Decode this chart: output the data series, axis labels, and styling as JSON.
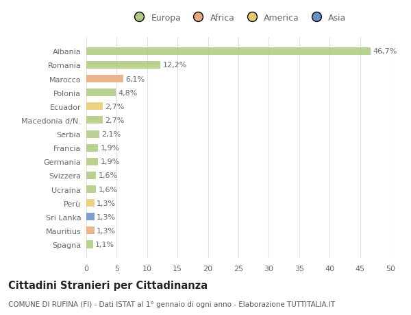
{
  "categories": [
    "Albania",
    "Romania",
    "Marocco",
    "Polonia",
    "Ecuador",
    "Macedonia d/N.",
    "Serbia",
    "Francia",
    "Germania",
    "Svizzera",
    "Ucraina",
    "Perù",
    "Sri Lanka",
    "Mauritius",
    "Spagna"
  ],
  "values": [
    46.7,
    12.2,
    6.1,
    4.8,
    2.7,
    2.7,
    2.1,
    1.9,
    1.9,
    1.6,
    1.6,
    1.3,
    1.3,
    1.3,
    1.1
  ],
  "bar_colors": [
    "#adc97e",
    "#adc97e",
    "#e8a87c",
    "#adc97e",
    "#e8cb6e",
    "#adc97e",
    "#adc97e",
    "#adc97e",
    "#adc97e",
    "#adc97e",
    "#adc97e",
    "#e8cb6e",
    "#6b8ec5",
    "#e8a87c",
    "#adc97e"
  ],
  "labels": [
    "46,7%",
    "12,2%",
    "6,1%",
    "4,8%",
    "2,7%",
    "2,7%",
    "2,1%",
    "1,9%",
    "1,9%",
    "1,6%",
    "1,6%",
    "1,3%",
    "1,3%",
    "1,3%",
    "1,1%"
  ],
  "legend_labels": [
    "Europa",
    "Africa",
    "America",
    "Asia"
  ],
  "legend_colors": [
    "#adc97e",
    "#e8a87c",
    "#e8cb6e",
    "#6b8ec5"
  ],
  "xlim": [
    0,
    50
  ],
  "xticks": [
    0,
    5,
    10,
    15,
    20,
    25,
    30,
    35,
    40,
    45,
    50
  ],
  "title": "Cittadini Stranieri per Cittadinanza",
  "subtitle": "COMUNE DI RUFINA (FI) - Dati ISTAT al 1° gennaio di ogni anno - Elaborazione TUTTITALIA.IT",
  "bg_color": "#ffffff",
  "plot_bg_color": "#ffffff",
  "grid_color": "#e0e0e0",
  "bar_height": 0.55,
  "label_fontsize": 8,
  "tick_fontsize": 8,
  "title_fontsize": 10.5,
  "subtitle_fontsize": 7.5
}
